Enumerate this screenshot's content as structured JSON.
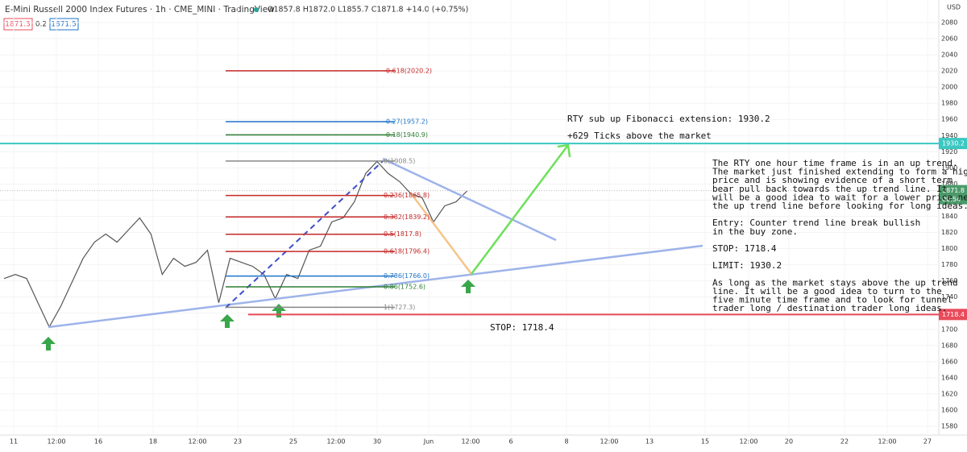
{
  "header": {
    "title": "E-Mini Russell 2000 Index Futures · 1h · CME_MINI · TradingView",
    "ohlc": "O1857.8 H1872.0 L1855.7 C1871.8 +14.0 (+0.75%)",
    "bid": "1871.3",
    "spread": "0.2",
    "ask": "1871.5"
  },
  "price_axis": {
    "currency": "USD",
    "ticks": [
      2080,
      2060,
      2040,
      2020,
      2000,
      1980,
      1960,
      1940,
      1920,
      1900,
      1880,
      1860,
      1840,
      1820,
      1800,
      1780,
      1760,
      1740,
      1720,
      1700,
      1680,
      1660,
      1640,
      1620,
      1600,
      1580
    ],
    "markers": [
      {
        "value": 1930.2,
        "label": "1930.2",
        "color": "#3cc7c2"
      },
      {
        "value": 1871.8,
        "label": "1871.8",
        "color": "#4c9a6a"
      },
      {
        "value": 1718.4,
        "label": "1718.4",
        "color": "#e84b5a"
      }
    ],
    "countdown": "00:54"
  },
  "time_axis": {
    "labels": [
      "11",
      "12:00",
      "16",
      "18",
      "12:00",
      "23",
      "25",
      "12:00",
      "30",
      "Jun",
      "12:00",
      "6",
      "8",
      "12:00",
      "13",
      "15",
      "12:00",
      "20",
      "22",
      "12:00",
      "27"
    ]
  },
  "fib_levels": [
    {
      "value": 2020.2,
      "label": "-0.618(2020.2)",
      "color": "#c62828"
    },
    {
      "value": 1957.2,
      "label": "-0.27(1957.2)",
      "color": "#1e73c8"
    },
    {
      "value": 1940.9,
      "label": "-0.18(1940.9)",
      "color": "#2e7d32"
    },
    {
      "value": 1908.5,
      "label": "0(1908.5)",
      "color": "#888888"
    },
    {
      "value": 1865.8,
      "label": "0.236(1865.8)",
      "color": "#c62828"
    },
    {
      "value": 1839.2,
      "label": "0.382(1839.2)",
      "color": "#c62828"
    },
    {
      "value": 1817.8,
      "label": "0.5(1817.8)",
      "color": "#c62828"
    },
    {
      "value": 1796.4,
      "label": "0.618(1796.4)",
      "color": "#c62828"
    },
    {
      "value": 1766.0,
      "label": "0.786(1766.0)",
      "color": "#1e73c8"
    },
    {
      "value": 1752.6,
      "label": "0.86(1752.6)",
      "color": "#2e7d32"
    },
    {
      "value": 1727.3,
      "label": "1(1727.3)",
      "color": "#888888"
    }
  ],
  "price": {
    "color": "#555555",
    "values": [
      1763,
      1768,
      1763,
      1733,
      1703,
      1728,
      1758,
      1788,
      1808,
      1818,
      1808,
      1823,
      1838,
      1818,
      1768,
      1788,
      1778,
      1783,
      1798,
      1733,
      1788,
      1783,
      1778,
      1768,
      1738,
      1768,
      1763,
      1798,
      1803,
      1833,
      1838,
      1858,
      1893,
      1908,
      1893,
      1883,
      1868,
      1863,
      1833,
      1853,
      1858,
      1871.8
    ]
  },
  "annotations": {
    "target": "RTY sub up Fibonacci extension: 1930.2",
    "ticks": "+629 Ticks above the market",
    "stop": "STOP: 1718.4"
  },
  "note": {
    "paragraphs": [
      [
        "The RTY one hour time frame is in an up trend.",
        "The market just finished extending to form a high",
        "price and is showing evidence of a short term",
        "bear pull back towards the up trend line. It",
        "will be a good idea to wait for a lower price near",
        "the up trend line before looking for long ideas."
      ],
      [
        "Entry: Counter trend line break bullish",
        "in the buy zone."
      ],
      [
        "STOP: 1718.4"
      ],
      [
        "LIMIT: 1930.2"
      ],
      [
        "As long as the market stays above the up trend",
        "line. It will be a good idea to turn to the",
        "five minute time frame and to look for tunnel",
        "trader long / destination trader long ideas."
      ]
    ]
  }
}
